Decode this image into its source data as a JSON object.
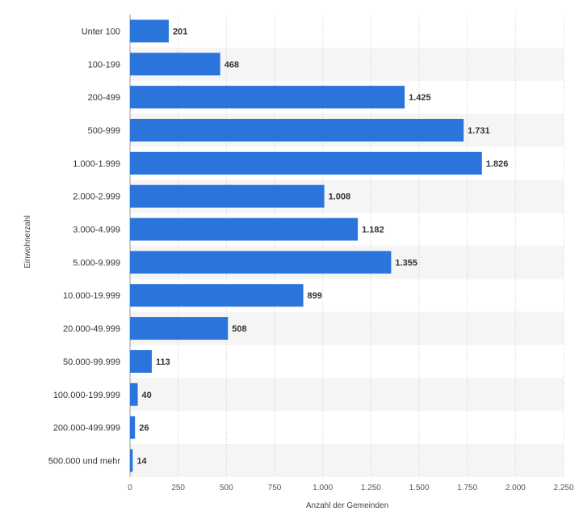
{
  "chart_data": {
    "type": "bar",
    "orientation": "horizontal",
    "categories": [
      "Unter 100",
      "100-199",
      "200-499",
      "500-999",
      "1.000-1.999",
      "2.000-2.999",
      "3.000-4.999",
      "5.000-9.999",
      "10.000-19.999",
      "20.000-49.999",
      "50.000-99.999",
      "100.000-199.999",
      "200.000-499.999",
      "500.000 und mehr"
    ],
    "values": [
      201,
      468,
      1425,
      1731,
      1826,
      1008,
      1182,
      1355,
      899,
      508,
      113,
      40,
      26,
      14
    ],
    "value_labels": [
      "201",
      "468",
      "1.425",
      "1.731",
      "1.826",
      "1.008",
      "1.182",
      "1.355",
      "899",
      "508",
      "113",
      "40",
      "26",
      "14"
    ],
    "xlabel": "Anzahl der Gemeinden",
    "ylabel": "Einwohnerzahl",
    "xlim": [
      0,
      2250
    ],
    "xticks": [
      0,
      250,
      500,
      750,
      1000,
      1250,
      1500,
      1750,
      2000,
      2250
    ],
    "xtick_labels": [
      "0",
      "250",
      "500",
      "750",
      "1.000",
      "1.250",
      "1.500",
      "1.750",
      "2.000",
      "2.250"
    ],
    "grid": "vertical dotted",
    "colors": {
      "bar": "#2a74dc",
      "stripe": "#f5f5f5",
      "grid": "#cccccc"
    }
  }
}
